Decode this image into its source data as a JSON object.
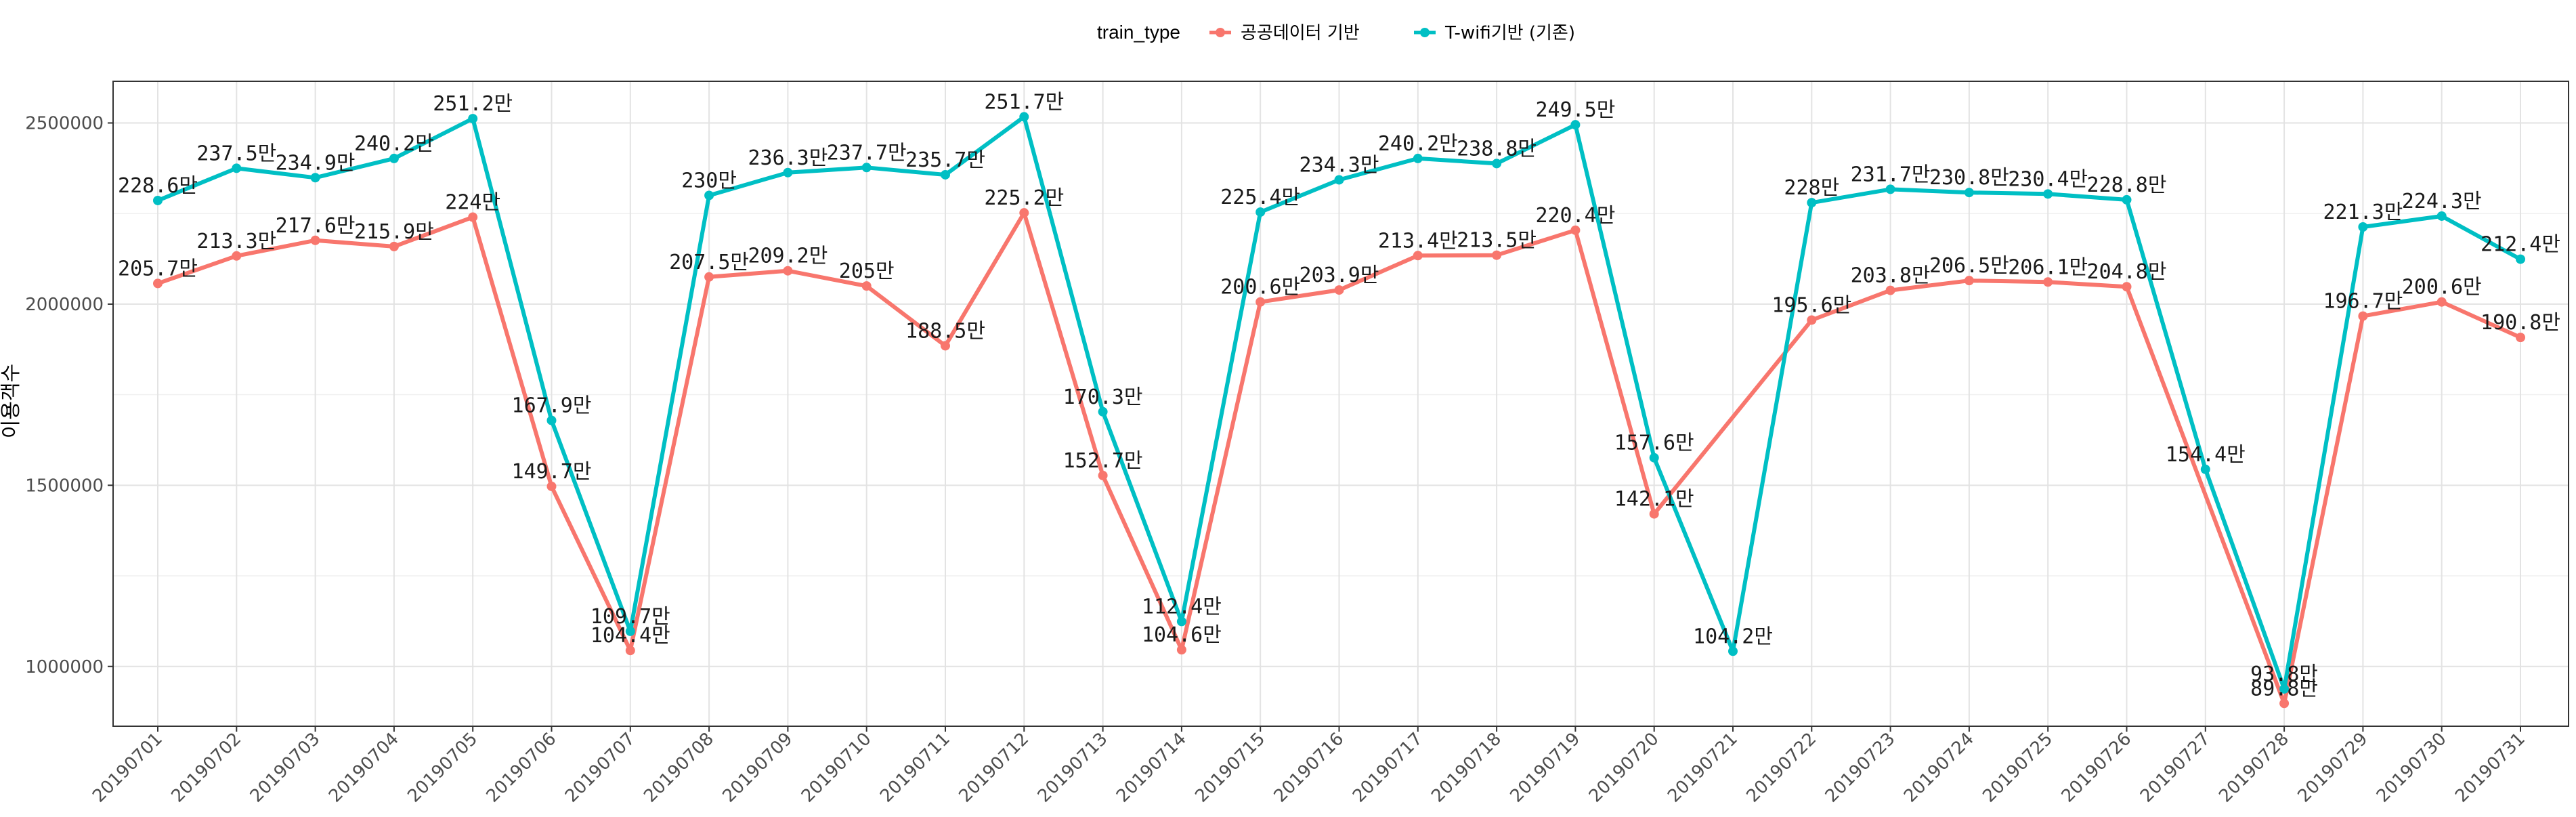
{
  "chart_data": {
    "type": "line",
    "legend_title": "train_type",
    "legend_position": "top",
    "ylabel": "이용객수",
    "xlabel": "",
    "ylim": [
      835000,
      2615000
    ],
    "yticks": [
      1000000,
      1500000,
      2000000,
      2500000
    ],
    "ytick_labels": [
      "1000000",
      "1500000",
      "2000000",
      "2500000"
    ],
    "grid": true,
    "categories": [
      "20190701",
      "20190702",
      "20190703",
      "20190704",
      "20190705",
      "20190706",
      "20190707",
      "20190708",
      "20190709",
      "20190710",
      "20190711",
      "20190712",
      "20190713",
      "20190714",
      "20190715",
      "20190716",
      "20190717",
      "20190718",
      "20190719",
      "20190720",
      "20190721",
      "20190722",
      "20190723",
      "20190724",
      "20190725",
      "20190726",
      "20190727",
      "20190728",
      "20190729",
      "20190730",
      "20190731"
    ],
    "series": [
      {
        "name": "공공데이터 기반",
        "color": "#F8766D",
        "values": [
          2057000,
          2133000,
          2176000,
          2159000,
          2240000,
          1497000,
          1044000,
          2075000,
          2092000,
          2050000,
          1885000,
          2252000,
          1527000,
          1046000,
          2006000,
          2039000,
          2134000,
          2135000,
          2204000,
          1421000,
          null,
          1956000,
          2038000,
          2065000,
          2061000,
          2048000,
          null,
          898000,
          1967000,
          2006000,
          1908000
        ],
        "labels": [
          "205.7만",
          "213.3만",
          "217.6만",
          "215.9만",
          "224만",
          "149.7만",
          "104.4만",
          "207.5만",
          "209.2만",
          "205만",
          "188.5만",
          "225.2만",
          "152.7만",
          "104.6만",
          "200.6만",
          "203.9만",
          "213.4만",
          "213.5만",
          "220.4만",
          "142.1만",
          "",
          "195.6만",
          "203.8만",
          "206.5만",
          "206.1만",
          "204.8만",
          "",
          "89.8만",
          "196.7만",
          "200.6만",
          "190.8만"
        ]
      },
      {
        "name": "T-wifi기반 (기존)",
        "color": "#00BFC4",
        "values": [
          2286000,
          2375000,
          2349000,
          2402000,
          2512000,
          1679000,
          1097000,
          2300000,
          2363000,
          2377000,
          2357000,
          2517000,
          1703000,
          1124000,
          2254000,
          2343000,
          2402000,
          2388000,
          2495000,
          1576000,
          1042000,
          2280000,
          2317000,
          2308000,
          2304000,
          2288000,
          1544000,
          938000,
          2213000,
          2243000,
          2124000
        ],
        "labels": [
          "228.6만",
          "237.5만",
          "234.9만",
          "240.2만",
          "251.2만",
          "167.9만",
          "109.7만",
          "230만",
          "236.3만",
          "237.7만",
          "235.7만",
          "251.7만",
          "170.3만",
          "112.4만",
          "225.4만",
          "234.3만",
          "240.2만",
          "238.8만",
          "249.5만",
          "157.6만",
          "104.2만",
          "228만",
          "231.7만",
          "230.8만",
          "230.4만",
          "228.8만",
          "154.4만",
          "93.8만",
          "221.3만",
          "224.3만",
          "212.4만"
        ]
      }
    ]
  }
}
